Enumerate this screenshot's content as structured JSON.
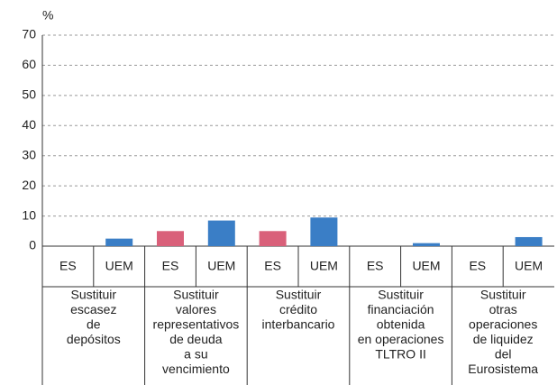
{
  "chart_data": {
    "type": "bar",
    "y_label": "%",
    "categories": [
      "ES",
      "UEM",
      "ES",
      "UEM",
      "ES",
      "UEM",
      "ES",
      "UEM",
      "ES",
      "UEM"
    ],
    "values": [
      0,
      2.5,
      5,
      8.5,
      5,
      9.5,
      0,
      1,
      0,
      3
    ],
    "colors": {
      "ES": "#d9607a",
      "UEM": "#3a7ec6"
    },
    "groups": [
      {
        "lines": [
          "Sustituir",
          "escasez",
          "de",
          "depósitos"
        ]
      },
      {
        "lines": [
          "Sustituir",
          "valores",
          "representativos",
          "de deuda",
          "a su",
          "vencimiento"
        ]
      },
      {
        "lines": [
          "Sustituir",
          "crédito",
          "interbancario"
        ]
      },
      {
        "lines": [
          "Sustituir",
          "financiación",
          "obtenida",
          "en operaciones",
          "TLTRO II"
        ]
      },
      {
        "lines": [
          "Sustituir",
          "otras",
          "operaciones",
          "de liquidez",
          "del",
          "Eurosistema"
        ]
      }
    ],
    "ylim": [
      0,
      70
    ],
    "yticks": [
      0,
      10,
      20,
      30,
      40,
      50,
      60,
      70
    ],
    "grid": true
  }
}
